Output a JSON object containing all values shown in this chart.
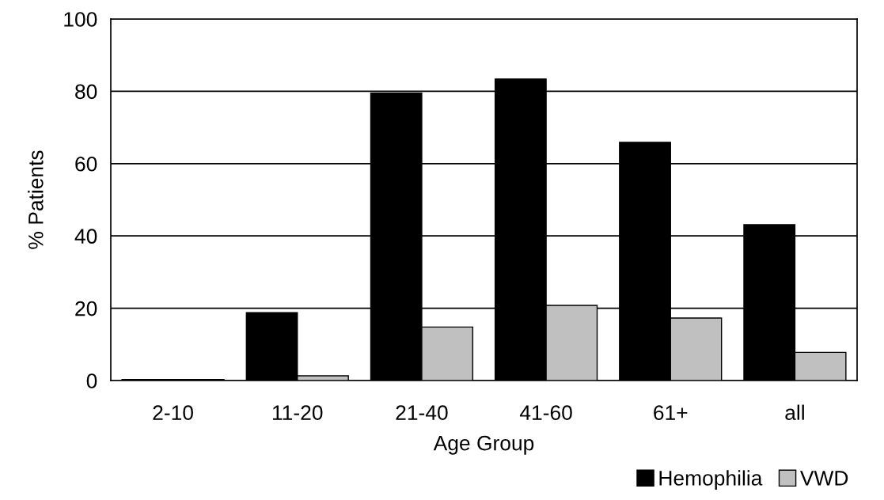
{
  "chart_data": {
    "type": "bar",
    "xlabel": "Age Group",
    "ylabel": "% Patients",
    "categories": [
      "2-10",
      "11-20",
      "21-40",
      "41-60",
      "61+",
      "all"
    ],
    "series": [
      {
        "name": "Hemophilia",
        "color": "#000000",
        "values": [
          0.3,
          18.8,
          79.5,
          83.4,
          65.9,
          43.1
        ]
      },
      {
        "name": "VWD",
        "color": "#c0c0c0",
        "values": [
          0.3,
          1.3,
          14.8,
          20.8,
          17.3,
          7.8
        ]
      }
    ],
    "ylim": [
      0,
      100
    ],
    "yticks": [
      0,
      20,
      40,
      60,
      80,
      100
    ],
    "grid": "y",
    "legend": "bottom right"
  }
}
